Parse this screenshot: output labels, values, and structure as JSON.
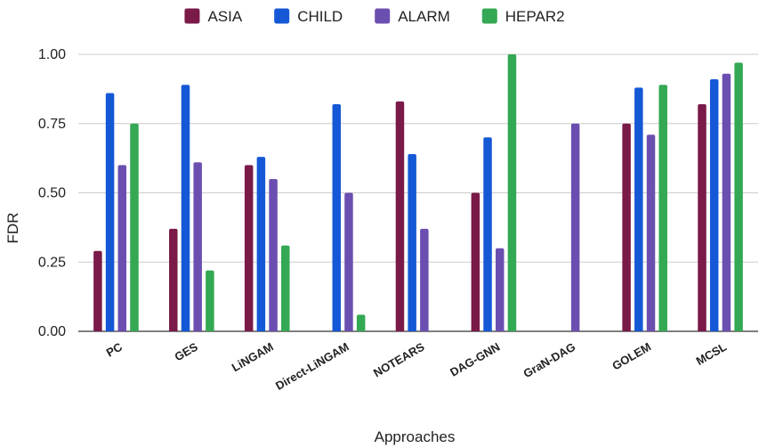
{
  "chart_data": {
    "type": "bar",
    "title": "",
    "xlabel": "Approaches",
    "ylabel": "FDR",
    "ylim": [
      0,
      1
    ],
    "yticks": [
      "0.00",
      "0.25",
      "0.50",
      "0.75",
      "1.00"
    ],
    "ytick_values": [
      0,
      0.25,
      0.5,
      0.75,
      1.0
    ],
    "grid": true,
    "legend_position": "top-center",
    "categories": [
      "PC",
      "GES",
      "LiNGAM",
      "Direct-LiNGAM",
      "NOTEARS",
      "DAG-GNN",
      "GraN-DAG",
      "GOLEM",
      "MCSL"
    ],
    "series": [
      {
        "name": "ASIA",
        "color": "#7a1a48",
        "values": [
          0.29,
          0.37,
          0.6,
          null,
          0.83,
          0.5,
          null,
          0.75,
          0.82
        ]
      },
      {
        "name": "CHILD",
        "color": "#1558d6",
        "values": [
          0.86,
          0.89,
          0.63,
          0.82,
          0.64,
          0.7,
          null,
          0.88,
          0.91
        ]
      },
      {
        "name": "ALARM",
        "color": "#6b4fb0",
        "values": [
          0.6,
          0.61,
          0.55,
          0.5,
          0.37,
          0.3,
          0.75,
          0.71,
          0.93
        ]
      },
      {
        "name": "HEPAR2",
        "color": "#34a853",
        "values": [
          0.75,
          0.22,
          0.31,
          0.06,
          null,
          1.0,
          null,
          0.89,
          0.97
        ]
      }
    ]
  }
}
